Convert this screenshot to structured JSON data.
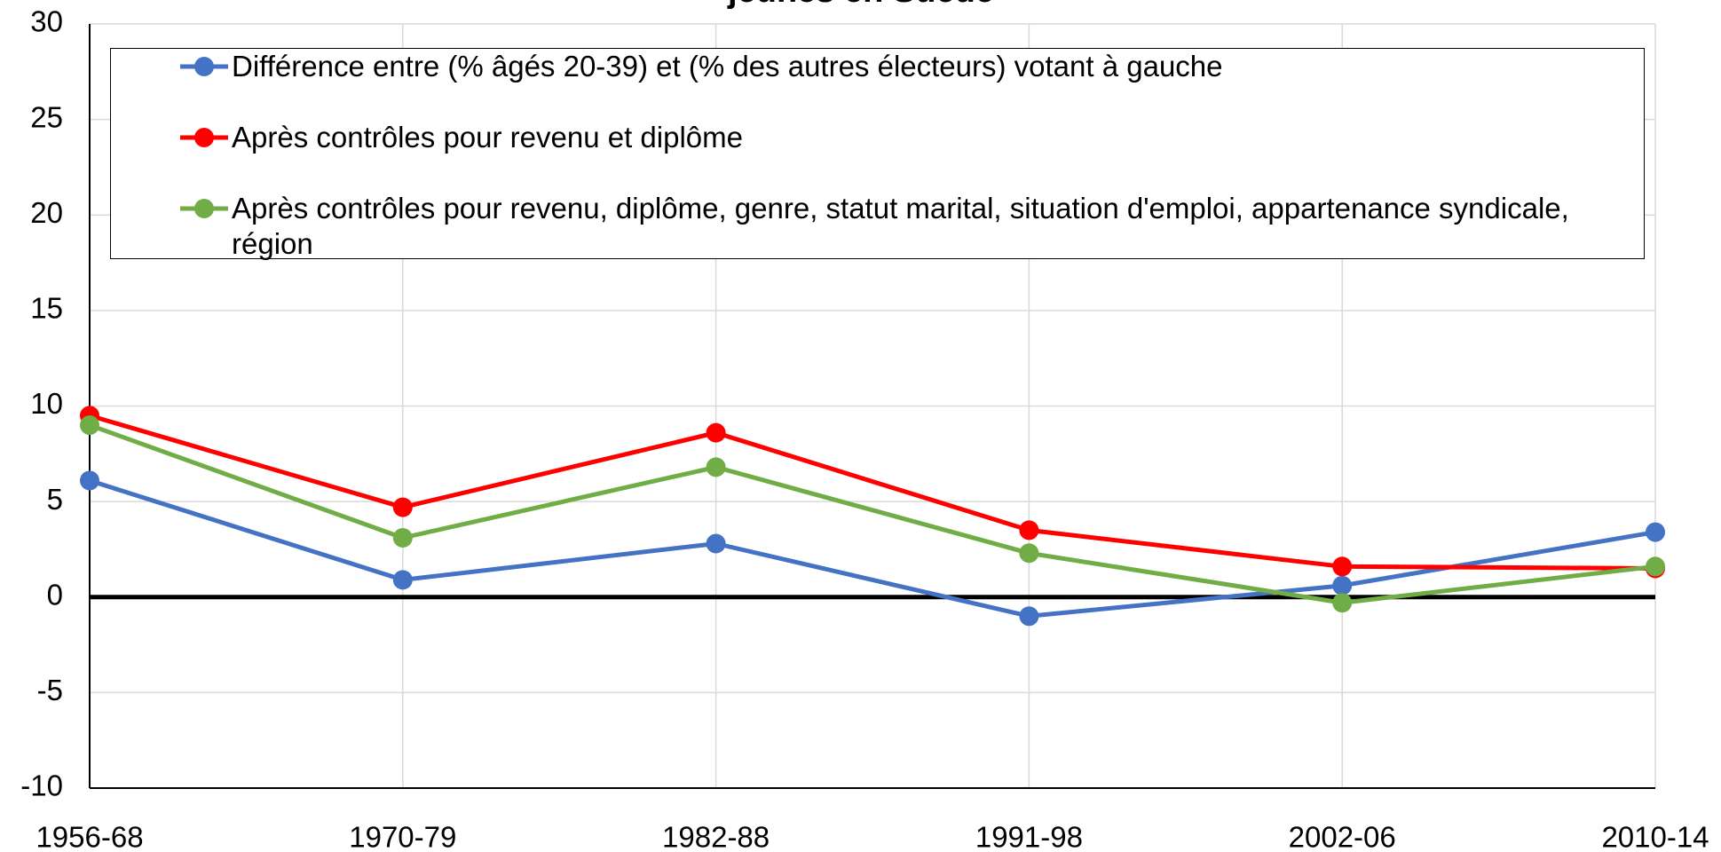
{
  "chart_data": {
    "type": "line",
    "title": "jeunes en Suède",
    "categories": [
      "1956-68",
      "1970-79",
      "1982-88",
      "1991-98",
      "2002-06",
      "2010-14"
    ],
    "series": [
      {
        "name": "Différence entre (% âgés 20-39) et (% des autres électeurs) votant à gauche",
        "color": "#4472c4",
        "values": [
          6.1,
          0.9,
          2.8,
          -1.0,
          0.6,
          3.4
        ]
      },
      {
        "name": "Après contrôles pour revenu et diplôme",
        "color": "#ff0000",
        "values": [
          9.5,
          4.7,
          8.6,
          3.5,
          1.6,
          1.5
        ]
      },
      {
        "name": "Après contrôles pour revenu, diplôme, genre, statut marital, situation d'emploi, appartenance syndicale, région",
        "color": "#70ad47",
        "values": [
          9.0,
          3.1,
          6.8,
          2.3,
          -0.3,
          1.6
        ]
      }
    ],
    "ylim": [
      -10,
      30
    ],
    "yticks": [
      -10,
      -5,
      0,
      5,
      10,
      15,
      20,
      25,
      30
    ],
    "grid": true,
    "zero_line": true,
    "legend": "top"
  }
}
